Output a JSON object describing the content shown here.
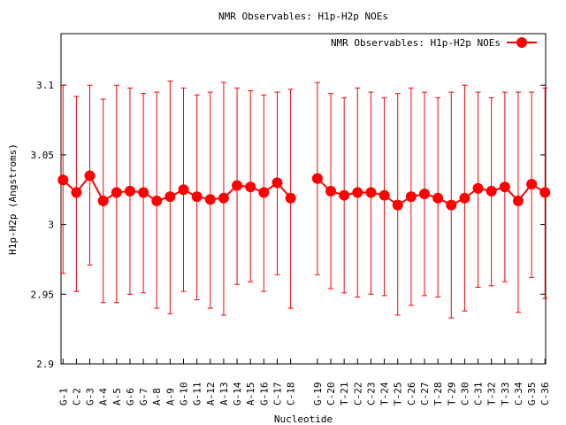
{
  "chart_data": {
    "type": "line",
    "title": "NMR Observables: H1p-H2p NOEs",
    "xlabel": "Nucleotide",
    "ylabel": "H1p-H2p (Angstroms)",
    "ylim": [
      2.9,
      3.137
    ],
    "yticks": [
      2.9,
      2.95,
      3,
      3.05,
      3.1
    ],
    "ytick_labels": [
      "2.9",
      "2.95",
      "3",
      "3.05",
      "3.1"
    ],
    "xlim": [
      0.85,
      37.05
    ],
    "grid": false,
    "legend_position": "top-right",
    "error_bars": true,
    "colors": {
      "series": "#ff0000",
      "axis": "#000000"
    },
    "series": [
      {
        "name": "NMR Observables: H1p-H2p NOEs",
        "points": [
          {
            "x": 1,
            "label": "G-1",
            "y": 3.032,
            "lo": 2.965,
            "hi": 3.1
          },
          {
            "x": 2,
            "label": "C-2",
            "y": 3.023,
            "lo": 2.952,
            "hi": 3.092
          },
          {
            "x": 3,
            "label": "G-3",
            "y": 3.035,
            "lo": 2.971,
            "hi": 3.1
          },
          {
            "x": 4,
            "label": "A-4",
            "y": 3.017,
            "lo": 2.944,
            "hi": 3.09
          },
          {
            "x": 5,
            "label": "A-5",
            "y": 3.023,
            "lo": 2.944,
            "hi": 3.1
          },
          {
            "x": 6,
            "label": "G-6",
            "y": 3.024,
            "lo": 2.95,
            "hi": 3.098
          },
          {
            "x": 7,
            "label": "G-7",
            "y": 3.023,
            "lo": 2.951,
            "hi": 3.094
          },
          {
            "x": 8,
            "label": "A-8",
            "y": 3.017,
            "lo": 2.94,
            "hi": 3.095
          },
          {
            "x": 9,
            "label": "A-9",
            "y": 3.02,
            "lo": 2.936,
            "hi": 3.103
          },
          {
            "x": 10,
            "label": "G-10",
            "y": 3.025,
            "lo": 2.952,
            "hi": 3.098
          },
          {
            "x": 11,
            "label": "G-11",
            "y": 3.02,
            "lo": 2.946,
            "hi": 3.093
          },
          {
            "x": 12,
            "label": "A-12",
            "y": 3.018,
            "lo": 2.94,
            "hi": 3.095
          },
          {
            "x": 13,
            "label": "A-13",
            "y": 3.019,
            "lo": 2.935,
            "hi": 3.102
          },
          {
            "x": 14,
            "label": "G-14",
            "y": 3.028,
            "lo": 2.957,
            "hi": 3.098
          },
          {
            "x": 15,
            "label": "A-15",
            "y": 3.027,
            "lo": 2.959,
            "hi": 3.096
          },
          {
            "x": 16,
            "label": "G-16",
            "y": 3.023,
            "lo": 2.952,
            "hi": 3.093
          },
          {
            "x": 17,
            "label": "C-17",
            "y": 3.03,
            "lo": 2.964,
            "hi": 3.095
          },
          {
            "x": 18,
            "label": "C-18",
            "y": 3.019,
            "lo": 2.94,
            "hi": 3.097
          },
          {
            "x": 20,
            "label": "G-19",
            "y": 3.033,
            "lo": 2.964,
            "hi": 3.102
          },
          {
            "x": 21,
            "label": "C-20",
            "y": 3.024,
            "lo": 2.954,
            "hi": 3.094
          },
          {
            "x": 22,
            "label": "T-21",
            "y": 3.021,
            "lo": 2.951,
            "hi": 3.091
          },
          {
            "x": 23,
            "label": "C-22",
            "y": 3.023,
            "lo": 2.948,
            "hi": 3.098
          },
          {
            "x": 24,
            "label": "C-23",
            "y": 3.023,
            "lo": 2.95,
            "hi": 3.095
          },
          {
            "x": 25,
            "label": "T-24",
            "y": 3.021,
            "lo": 2.949,
            "hi": 3.091
          },
          {
            "x": 26,
            "label": "T-25",
            "y": 3.014,
            "lo": 2.935,
            "hi": 3.094
          },
          {
            "x": 27,
            "label": "C-26",
            "y": 3.02,
            "lo": 2.942,
            "hi": 3.098
          },
          {
            "x": 28,
            "label": "C-27",
            "y": 3.022,
            "lo": 2.949,
            "hi": 3.095
          },
          {
            "x": 29,
            "label": "T-28",
            "y": 3.019,
            "lo": 2.948,
            "hi": 3.091
          },
          {
            "x": 30,
            "label": "T-29",
            "y": 3.014,
            "lo": 2.933,
            "hi": 3.095
          },
          {
            "x": 31,
            "label": "C-30",
            "y": 3.019,
            "lo": 2.938,
            "hi": 3.1
          },
          {
            "x": 32,
            "label": "C-31",
            "y": 3.026,
            "lo": 2.955,
            "hi": 3.095
          },
          {
            "x": 33,
            "label": "T-32",
            "y": 3.024,
            "lo": 2.956,
            "hi": 3.091
          },
          {
            "x": 34,
            "label": "T-33",
            "y": 3.027,
            "lo": 2.959,
            "hi": 3.095
          },
          {
            "x": 35,
            "label": "C-34",
            "y": 3.017,
            "lo": 2.937,
            "hi": 3.095
          },
          {
            "x": 36,
            "label": "G-35",
            "y": 3.029,
            "lo": 2.962,
            "hi": 3.095
          },
          {
            "x": 37,
            "label": "C-36",
            "y": 3.023,
            "lo": 2.947,
            "hi": 3.098
          }
        ]
      }
    ]
  }
}
